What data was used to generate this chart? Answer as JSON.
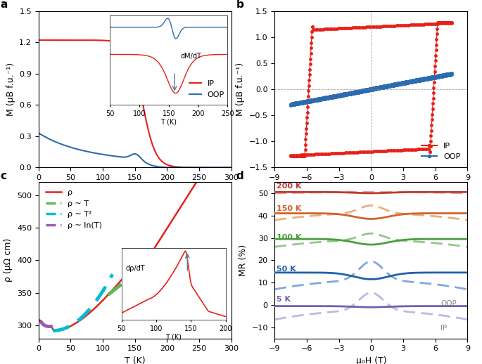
{
  "panel_a": {
    "xlabel": "T (K)",
    "ylabel": "M (μB f.u.⁻¹)",
    "xlim": [
      0,
      300
    ],
    "ylim": [
      0,
      1.5
    ],
    "yticks": [
      0,
      0.3,
      0.6,
      0.9,
      1.2,
      1.5
    ],
    "xticks": [
      0,
      50,
      100,
      150,
      200,
      250,
      300
    ],
    "color_ip": "#e8201a",
    "color_oop": "#2b6cb0",
    "legend": [
      "IP",
      "OOP"
    ]
  },
  "panel_b": {
    "xlabel": "μ₀H (T)",
    "ylabel": "M (μB f.u.⁻¹)",
    "xlim": [
      -9,
      9
    ],
    "ylim": [
      -1.5,
      1.5
    ],
    "yticks": [
      -1.5,
      -1.0,
      -0.5,
      0,
      0.5,
      1.0,
      1.5
    ],
    "xticks": [
      -9,
      -6,
      -3,
      0,
      3,
      6,
      9
    ],
    "color_ip": "#e8201a",
    "color_oop": "#2b6cb0",
    "legend": [
      "IP",
      "OOP"
    ]
  },
  "panel_c": {
    "xlabel": "T (K)",
    "ylabel": "ρ (μΩ cm)",
    "xlim": [
      0,
      300
    ],
    "ylim": [
      280,
      520
    ],
    "yticks": [
      300,
      350,
      400,
      450,
      500
    ],
    "xticks": [
      0,
      50,
      100,
      150,
      200,
      250,
      300
    ],
    "color_rho": "#e8201a",
    "color_T": "#5cb85c",
    "color_T2": "#00bcd4",
    "color_lnT": "#9b59b6",
    "legend": [
      "ρ",
      "ρ ~ T",
      "ρ ~ T²",
      "ρ ~ ln(T)"
    ]
  },
  "panel_d": {
    "xlabel": "μ₀H (T)",
    "ylabel": "MR (%)",
    "xlim": [
      -9,
      9
    ],
    "ylim": [
      -15,
      55
    ],
    "yticks": [
      -10,
      0,
      10,
      20,
      30,
      40,
      50
    ],
    "xticks": [
      -9,
      -6,
      -3,
      0,
      3,
      6,
      9
    ],
    "temperatures": [
      200,
      150,
      100,
      50,
      5
    ],
    "colors_oop": [
      "#c0392b",
      "#d4622a",
      "#4a9e3f",
      "#2060a8",
      "#7060b0"
    ],
    "colors_ip": [
      "#e8a0a0",
      "#e8b080",
      "#90c888",
      "#80a8d8",
      "#c0b8e0"
    ],
    "MR_oop_center": [
      50.5,
      41.0,
      29.5,
      14.5,
      -0.5
    ],
    "MR_ip_center": [
      50.5,
      41.0,
      29.0,
      11.0,
      -2.5
    ],
    "MR_oop_dip": [
      0.5,
      2.5,
      2.5,
      3.0,
      0.5
    ],
    "MR_ip_peak": [
      0.0,
      3.5,
      3.0,
      8.5,
      8.0
    ],
    "MR_ip_drop": [
      0.5,
      3.0,
      3.0,
      4.0,
      4.0
    ]
  }
}
